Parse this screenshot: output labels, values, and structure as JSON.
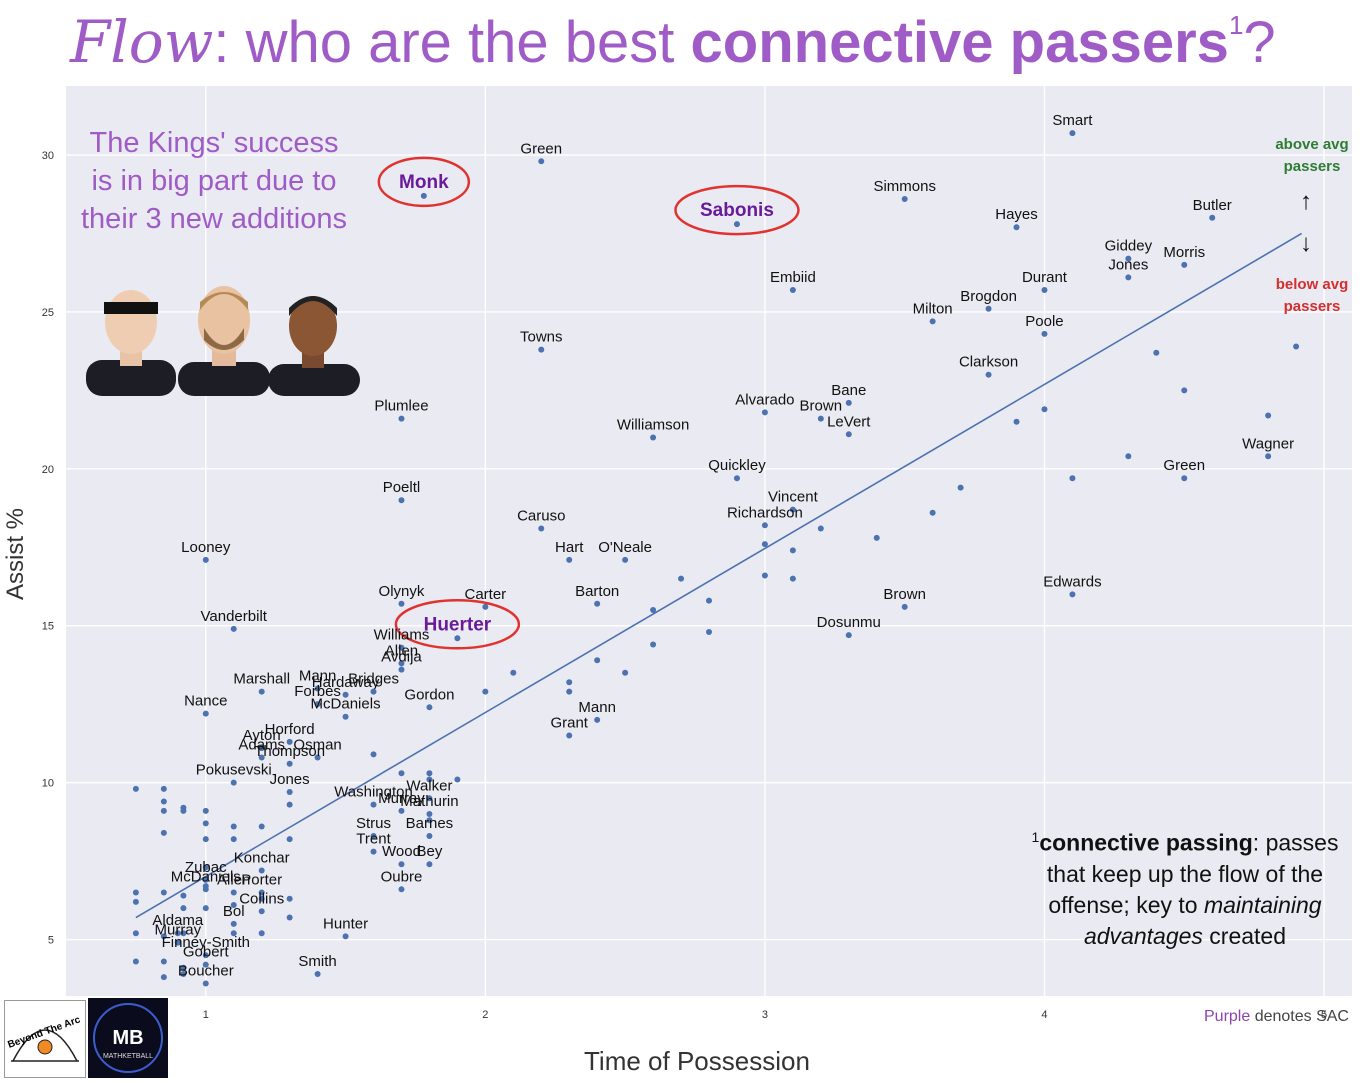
{
  "title": {
    "script": "Flow",
    "pre": ": who are the best ",
    "bold": "connective passers",
    "sup": "1",
    "post": "?"
  },
  "colors": {
    "title": "#a05cc6",
    "sac": "#6a1b9a",
    "point": "#4c72b0",
    "trend": "#4c72b0",
    "circle": "#e0332f",
    "plot_bg": "#eaeaf2",
    "above": "#2e7d32",
    "below": "#d32f2f"
  },
  "kings_note": "The Kings' success is in big part due to their 3 new additions",
  "above_label": "above avg passers",
  "below_label": "below avg passers",
  "arrow_up": "↑",
  "arrow_down": "↓",
  "footnote": {
    "sup": "1",
    "term": "connective passing",
    "rest1": ": passes that keep up the flow of the offense; key to ",
    "italic1": "maintaining advantages",
    "rest2": " created"
  },
  "sac_note": {
    "purple": "Purple",
    "rest": " denotes SAC"
  },
  "logos": {
    "left_text": "Beyond The Arc",
    "right_big": "MB",
    "right_small": "MATHKETBALL"
  },
  "chart_data": {
    "type": "scatter",
    "xlabel": "Time of Possession",
    "ylabel": "Assist %",
    "xlim": [
      0.5,
      5.1
    ],
    "ylim": [
      3.2,
      32.2
    ],
    "xticks": [
      1,
      2,
      3,
      4,
      5
    ],
    "yticks": [
      5,
      10,
      15,
      20,
      25,
      30
    ],
    "grid": true,
    "trendline": {
      "x": [
        0.75,
        4.92
      ],
      "y": [
        5.7,
        27.5
      ]
    },
    "labeled_points": [
      {
        "name": "Smart",
        "x": 4.1,
        "y": 30.7
      },
      {
        "name": "Green",
        "x": 2.2,
        "y": 29.8
      },
      {
        "name": "Monk",
        "x": 1.78,
        "y": 28.7,
        "sac": true
      },
      {
        "name": "Simmons",
        "x": 3.5,
        "y": 28.6
      },
      {
        "name": "Sabonis",
        "x": 2.9,
        "y": 27.8,
        "sac": true
      },
      {
        "name": "Butler",
        "x": 4.6,
        "y": 28.0
      },
      {
        "name": "Hayes",
        "x": 3.9,
        "y": 27.7
      },
      {
        "name": "Giddey",
        "x": 4.3,
        "y": 26.7
      },
      {
        "name": "Jones",
        "x": 4.3,
        "y": 26.1
      },
      {
        "name": "Morris",
        "x": 4.5,
        "y": 26.5
      },
      {
        "name": "Embiid",
        "x": 3.1,
        "y": 25.7
      },
      {
        "name": "Durant",
        "x": 4.0,
        "y": 25.7
      },
      {
        "name": "Brogdon",
        "x": 3.8,
        "y": 25.1
      },
      {
        "name": "Milton",
        "x": 3.6,
        "y": 24.7
      },
      {
        "name": "Poole",
        "x": 4.0,
        "y": 24.3
      },
      {
        "name": "Towns",
        "x": 2.2,
        "y": 23.8
      },
      {
        "name": "Clarkson",
        "x": 3.8,
        "y": 23.0
      },
      {
        "name": "Alvarado",
        "x": 3.0,
        "y": 21.8
      },
      {
        "name": "Bane",
        "x": 3.3,
        "y": 22.1
      },
      {
        "name": "Brown",
        "x": 3.2,
        "y": 21.6
      },
      {
        "name": "LeVert",
        "x": 3.3,
        "y": 21.1
      },
      {
        "name": "Plumlee",
        "x": 1.7,
        "y": 21.6
      },
      {
        "name": "Williamson",
        "x": 2.6,
        "y": 21.0
      },
      {
        "name": "Wagner",
        "x": 4.8,
        "y": 20.4
      },
      {
        "name": "Quickley",
        "x": 2.9,
        "y": 19.7
      },
      {
        "name": "Green",
        "x": 4.5,
        "y": 19.7
      },
      {
        "name": "Poeltl",
        "x": 1.7,
        "y": 19.0
      },
      {
        "name": "Vincent",
        "x": 3.1,
        "y": 18.7
      },
      {
        "name": "Richardson",
        "x": 3.0,
        "y": 18.2
      },
      {
        "name": "Caruso",
        "x": 2.2,
        "y": 18.1
      },
      {
        "name": "Looney",
        "x": 1.0,
        "y": 17.1
      },
      {
        "name": "Hart",
        "x": 2.3,
        "y": 17.1
      },
      {
        "name": "O'Neale",
        "x": 2.5,
        "y": 17.1
      },
      {
        "name": "Edwards",
        "x": 4.1,
        "y": 16.0
      },
      {
        "name": "Olynyk",
        "x": 1.7,
        "y": 15.7
      },
      {
        "name": "Barton",
        "x": 2.4,
        "y": 15.7
      },
      {
        "name": "Carter",
        "x": 2.0,
        "y": 15.6
      },
      {
        "name": "Brown",
        "x": 3.5,
        "y": 15.6
      },
      {
        "name": "Vanderbilt",
        "x": 1.1,
        "y": 14.9
      },
      {
        "name": "Dosunmu",
        "x": 3.3,
        "y": 14.7
      },
      {
        "name": "Huerter",
        "x": 1.9,
        "y": 14.6,
        "sac": true
      },
      {
        "name": "Williams",
        "x": 1.7,
        "y": 14.3
      },
      {
        "name": "Allen",
        "x": 1.7,
        "y": 13.8
      },
      {
        "name": "Avdija",
        "x": 1.7,
        "y": 13.6
      },
      {
        "name": "Marshall",
        "x": 1.2,
        "y": 12.9
      },
      {
        "name": "Mann",
        "x": 1.4,
        "y": 13.0
      },
      {
        "name": "Hardaway",
        "x": 1.5,
        "y": 12.8
      },
      {
        "name": "Bridges",
        "x": 1.6,
        "y": 12.9
      },
      {
        "name": "Forbes",
        "x": 1.4,
        "y": 12.5
      },
      {
        "name": "Gordon",
        "x": 1.8,
        "y": 12.4
      },
      {
        "name": "McDaniels",
        "x": 1.5,
        "y": 12.1
      },
      {
        "name": "Nance",
        "x": 1.0,
        "y": 12.2
      },
      {
        "name": "Mann",
        "x": 2.4,
        "y": 12.0
      },
      {
        "name": "Grant",
        "x": 2.3,
        "y": 11.5
      },
      {
        "name": "Horford",
        "x": 1.3,
        "y": 11.3
      },
      {
        "name": "Ayton",
        "x": 1.2,
        "y": 11.1
      },
      {
        "name": "Adams",
        "x": 1.2,
        "y": 10.8
      },
      {
        "name": "Osman",
        "x": 1.4,
        "y": 10.8
      },
      {
        "name": "Thompson",
        "x": 1.3,
        "y": 10.6
      },
      {
        "name": "Pokusevski",
        "x": 1.1,
        "y": 10.0
      },
      {
        "name": "Jones",
        "x": 1.3,
        "y": 9.7
      },
      {
        "name": "Walker",
        "x": 1.8,
        "y": 9.5
      },
      {
        "name": "Washington",
        "x": 1.6,
        "y": 9.3
      },
      {
        "name": "Murray",
        "x": 1.7,
        "y": 9.1
      },
      {
        "name": "Mathurin",
        "x": 1.8,
        "y": 9.0
      },
      {
        "name": "Strus",
        "x": 1.6,
        "y": 8.3
      },
      {
        "name": "Barnes",
        "x": 1.8,
        "y": 8.3
      },
      {
        "name": "Trent",
        "x": 1.6,
        "y": 7.8
      },
      {
        "name": "Wood",
        "x": 1.7,
        "y": 7.4
      },
      {
        "name": "Bey",
        "x": 1.8,
        "y": 7.4
      },
      {
        "name": "Konchar",
        "x": 1.2,
        "y": 7.2
      },
      {
        "name": "Oubre",
        "x": 1.7,
        "y": 6.6
      },
      {
        "name": "Zubac",
        "x": 1.0,
        "y": 6.9
      },
      {
        "name": "McDaniels",
        "x": 1.0,
        "y": 6.6
      },
      {
        "name": "Allen",
        "x": 1.1,
        "y": 6.5
      },
      {
        "name": "Porter",
        "x": 1.2,
        "y": 6.5
      },
      {
        "name": "Collins",
        "x": 1.2,
        "y": 5.9
      },
      {
        "name": "Bol",
        "x": 1.1,
        "y": 5.5
      },
      {
        "name": "Hunter",
        "x": 1.5,
        "y": 5.1
      },
      {
        "name": "Aldama",
        "x": 0.9,
        "y": 5.2
      },
      {
        "name": "Murray",
        "x": 0.9,
        "y": 4.9
      },
      {
        "name": "Finney-Smith",
        "x": 1.0,
        "y": 4.5
      },
      {
        "name": "Gobert",
        "x": 1.0,
        "y": 4.2
      },
      {
        "name": "Smith",
        "x": 1.4,
        "y": 3.9
      },
      {
        "name": "Boucher",
        "x": 1.0,
        "y": 3.6
      }
    ],
    "unlabeled_points": [
      [
        0.75,
        9.8
      ],
      [
        0.85,
        9.8
      ],
      [
        0.85,
        9.4
      ],
      [
        0.85,
        9.1
      ],
      [
        0.85,
        8.4
      ],
      [
        0.92,
        9.2
      ],
      [
        0.92,
        9.1
      ],
      [
        1.0,
        9.1
      ],
      [
        1.0,
        8.7
      ],
      [
        1.0,
        8.2
      ],
      [
        1.1,
        8.6
      ],
      [
        1.1,
        8.2
      ],
      [
        1.2,
        8.6
      ],
      [
        1.3,
        8.2
      ],
      [
        0.75,
        6.5
      ],
      [
        0.75,
        6.2
      ],
      [
        0.75,
        5.2
      ],
      [
        0.75,
        4.3
      ],
      [
        0.85,
        6.5
      ],
      [
        0.85,
        5.1
      ],
      [
        0.85,
        4.3
      ],
      [
        0.85,
        3.8
      ],
      [
        0.92,
        6.4
      ],
      [
        0.92,
        6.0
      ],
      [
        0.92,
        5.2
      ],
      [
        0.92,
        4.1
      ],
      [
        0.92,
        3.9
      ],
      [
        1.0,
        6.7
      ],
      [
        1.0,
        6.0
      ],
      [
        1.0,
        7.3
      ],
      [
        1.1,
        6.1
      ],
      [
        1.1,
        5.2
      ],
      [
        1.2,
        6.3
      ],
      [
        1.3,
        5.7
      ],
      [
        1.2,
        5.2
      ],
      [
        1.3,
        6.3
      ],
      [
        1.3,
        9.3
      ],
      [
        1.6,
        10.9
      ],
      [
        1.7,
        10.3
      ],
      [
        1.8,
        10.3
      ],
      [
        1.8,
        10.1
      ],
      [
        1.9,
        10.1
      ],
      [
        1.8,
        8.8
      ],
      [
        2.0,
        12.9
      ],
      [
        2.1,
        13.5
      ],
      [
        2.3,
        13.2
      ],
      [
        2.3,
        12.9
      ],
      [
        2.4,
        13.9
      ],
      [
        2.5,
        13.5
      ],
      [
        2.6,
        14.4
      ],
      [
        2.6,
        15.5
      ],
      [
        2.7,
        16.5
      ],
      [
        2.8,
        15.8
      ],
      [
        2.8,
        14.8
      ],
      [
        3.0,
        17.6
      ],
      [
        3.0,
        16.6
      ],
      [
        3.1,
        17.4
      ],
      [
        3.1,
        16.5
      ],
      [
        3.2,
        18.1
      ],
      [
        3.4,
        17.8
      ],
      [
        3.6,
        18.6
      ],
      [
        3.7,
        19.4
      ],
      [
        3.9,
        21.5
      ],
      [
        4.0,
        21.9
      ],
      [
        4.1,
        19.7
      ],
      [
        4.3,
        20.4
      ],
      [
        4.4,
        23.7
      ],
      [
        4.5,
        22.5
      ],
      [
        4.8,
        21.7
      ],
      [
        4.9,
        23.9
      ]
    ]
  }
}
